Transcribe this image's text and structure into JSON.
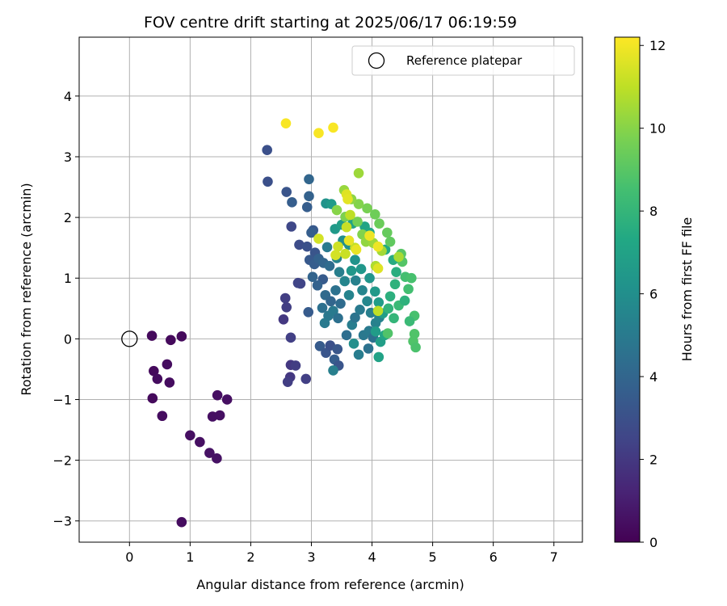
{
  "chart_data": {
    "type": "scatter",
    "title": "FOV centre drift starting at 2025/06/17 06:19:59",
    "xlabel": "Angular distance from reference (arcmin)",
    "ylabel": "Rotation from reference (arcmin)",
    "xlim": [
      -0.83,
      7.47
    ],
    "ylim": [
      -3.35,
      4.97
    ],
    "xticks": [
      0,
      1,
      2,
      3,
      4,
      5,
      6,
      7
    ],
    "yticks": [
      -3,
      -2,
      -1,
      0,
      1,
      2,
      3,
      4
    ],
    "grid": true,
    "legend": {
      "position": "top-right",
      "entries": [
        "Reference platepar"
      ]
    },
    "colorbar": {
      "label": "Hours from first FF file",
      "range": [
        0,
        12.2
      ],
      "ticks": [
        0,
        2,
        4,
        6,
        8,
        10,
        12
      ],
      "colormap": "viridis"
    },
    "reference_point": {
      "name": "Reference platepar",
      "x": 0,
      "y": 0
    },
    "points": [
      [
        0.37,
        0.05,
        0.3
      ],
      [
        0.68,
        -0.02,
        0.3
      ],
      [
        0.86,
        0.04,
        0.3
      ],
      [
        0.62,
        -0.42,
        0.4
      ],
      [
        0.4,
        -0.53,
        0.3
      ],
      [
        0.46,
        -0.66,
        0.4
      ],
      [
        0.66,
        -0.72,
        0.4
      ],
      [
        0.38,
        -0.98,
        0.3
      ],
      [
        0.54,
        -1.27,
        0.4
      ],
      [
        1.45,
        -0.93,
        0.5
      ],
      [
        1.61,
        -1.0,
        0.5
      ],
      [
        1.37,
        -1.28,
        0.5
      ],
      [
        1.49,
        -1.26,
        0.5
      ],
      [
        1.0,
        -1.59,
        0.5
      ],
      [
        1.16,
        -1.7,
        0.5
      ],
      [
        1.32,
        -1.88,
        0.6
      ],
      [
        1.44,
        -1.97,
        0.6
      ],
      [
        0.86,
        -3.02,
        0.4
      ],
      [
        2.27,
        3.11,
        3.0
      ],
      [
        2.28,
        2.59,
        3.0
      ],
      [
        2.59,
        2.42,
        3.2
      ],
      [
        2.68,
        2.25,
        3.6
      ],
      [
        2.96,
        2.63,
        4.0
      ],
      [
        2.96,
        2.35,
        3.8
      ],
      [
        2.93,
        2.17,
        3.6
      ],
      [
        2.67,
        1.85,
        2.6
      ],
      [
        2.8,
        1.55,
        2.8
      ],
      [
        2.93,
        1.52,
        3.0
      ],
      [
        3.03,
        1.79,
        3.4
      ],
      [
        3.0,
        1.75,
        3.6
      ],
      [
        2.82,
        0.91,
        2.5
      ],
      [
        2.78,
        0.92,
        2.5
      ],
      [
        2.57,
        0.67,
        2.2
      ],
      [
        2.59,
        0.52,
        2.2
      ],
      [
        2.54,
        0.32,
        2.0
      ],
      [
        2.95,
        0.44,
        3.5
      ],
      [
        2.66,
        0.02,
        2.3
      ],
      [
        2.66,
        -0.43,
        2.0
      ],
      [
        2.74,
        -0.44,
        2.2
      ],
      [
        2.65,
        -0.63,
        2.0
      ],
      [
        2.61,
        -0.71,
        2.2
      ],
      [
        2.91,
        -0.66,
        2.3
      ],
      [
        3.06,
        1.42,
        3.2
      ],
      [
        2.97,
        1.3,
        3.4
      ],
      [
        3.05,
        1.23,
        3.6
      ],
      [
        3.12,
        1.32,
        3.8
      ],
      [
        3.2,
        1.25,
        4.0
      ],
      [
        3.3,
        1.2,
        4.3
      ],
      [
        3.02,
        1.02,
        3.9
      ],
      [
        3.19,
        0.98,
        3.5
      ],
      [
        3.1,
        0.88,
        3.8
      ],
      [
        3.23,
        0.72,
        4.2
      ],
      [
        3.18,
        0.51,
        4.5
      ],
      [
        3.32,
        0.62,
        4.0
      ],
      [
        3.4,
        0.8,
        4.6
      ],
      [
        3.48,
        0.58,
        4.3
      ],
      [
        3.28,
        0.38,
        4.9
      ],
      [
        3.36,
        0.46,
        5.0
      ],
      [
        3.44,
        0.34,
        4.5
      ],
      [
        3.22,
        0.26,
        5.0
      ],
      [
        3.14,
        -0.12,
        3.5
      ],
      [
        3.24,
        -0.23,
        3.2
      ],
      [
        3.31,
        -0.11,
        3.0
      ],
      [
        3.43,
        -0.17,
        3.3
      ],
      [
        3.38,
        -0.34,
        3.6
      ],
      [
        3.45,
        -0.44,
        3.2
      ],
      [
        3.36,
        -0.52,
        5.2
      ],
      [
        3.78,
        -0.26,
        5.1
      ],
      [
        3.94,
        -0.16,
        4.6
      ],
      [
        3.58,
        0.06,
        4.4
      ],
      [
        3.67,
        0.23,
        5.1
      ],
      [
        3.72,
        0.35,
        4.7
      ],
      [
        3.8,
        0.48,
        5.0
      ],
      [
        3.86,
        0.06,
        4.9
      ],
      [
        3.95,
        0.13,
        5.0
      ],
      [
        4.02,
        0.02,
        4.5
      ],
      [
        4.06,
        0.26,
        5.3
      ],
      [
        4.12,
        0.35,
        5.4
      ],
      [
        3.98,
        0.43,
        5.2
      ],
      [
        3.92,
        0.62,
        5.6
      ],
      [
        3.84,
        0.8,
        5.5
      ],
      [
        3.73,
        0.96,
        5.3
      ],
      [
        3.62,
        0.72,
        5.4
      ],
      [
        3.55,
        0.95,
        5.5
      ],
      [
        3.46,
        1.1,
        5.2
      ],
      [
        3.42,
        1.33,
        5.4
      ],
      [
        3.26,
        1.51,
        5.0
      ],
      [
        3.52,
        1.62,
        6.0
      ],
      [
        3.62,
        1.55,
        6.1
      ],
      [
        3.72,
        1.3,
        6.2
      ],
      [
        3.66,
        1.12,
        6.4
      ],
      [
        3.82,
        1.15,
        6.4
      ],
      [
        3.96,
        1.0,
        6.3
      ],
      [
        4.05,
        0.78,
        6.5
      ],
      [
        4.11,
        0.6,
        6.7
      ],
      [
        4.18,
        0.42,
        6.8
      ],
      [
        4.06,
        0.12,
        6.7
      ],
      [
        4.14,
        -0.05,
        6.8
      ],
      [
        4.11,
        -0.3,
        7.0
      ],
      [
        4.21,
        0.06,
        7.2
      ],
      [
        3.7,
        -0.08,
        6.0
      ],
      [
        3.24,
        2.23,
        6.2
      ],
      [
        3.33,
        2.22,
        6.6
      ],
      [
        3.39,
        1.81,
        6.5
      ],
      [
        3.5,
        1.88,
        6.8
      ],
      [
        3.68,
        1.9,
        7.0
      ],
      [
        3.88,
        1.85,
        7.1
      ],
      [
        3.96,
        1.75,
        7.3
      ],
      [
        4.22,
        1.47,
        7.4
      ],
      [
        4.35,
        1.3,
        7.5
      ],
      [
        4.4,
        1.1,
        7.6
      ],
      [
        4.38,
        0.9,
        7.8
      ],
      [
        4.3,
        0.7,
        7.7
      ],
      [
        4.27,
        0.5,
        7.9
      ],
      [
        4.36,
        0.34,
        8.0
      ],
      [
        4.44,
        0.55,
        8.2
      ],
      [
        4.54,
        0.63,
        7.8
      ],
      [
        4.6,
        0.82,
        8.5
      ],
      [
        4.55,
        1.02,
        8.5
      ],
      [
        4.65,
        1.0,
        8.6
      ],
      [
        4.7,
        0.38,
        8.6
      ],
      [
        4.62,
        0.29,
        8.2
      ],
      [
        4.7,
        0.08,
        8.8
      ],
      [
        4.68,
        -0.04,
        8.8
      ],
      [
        4.72,
        -0.14,
        8.7
      ],
      [
        4.26,
        0.09,
        8.8
      ],
      [
        4.5,
        1.27,
        8.9
      ],
      [
        4.48,
        1.4,
        9.0
      ],
      [
        4.3,
        1.6,
        9.2
      ],
      [
        4.25,
        1.75,
        9.3
      ],
      [
        4.12,
        1.9,
        9.4
      ],
      [
        4.05,
        2.05,
        9.5
      ],
      [
        3.92,
        2.15,
        9.7
      ],
      [
        3.78,
        2.22,
        9.9
      ],
      [
        3.66,
        2.3,
        10.1
      ],
      [
        3.54,
        2.45,
        10.3
      ],
      [
        3.42,
        2.12,
        10.0
      ],
      [
        3.56,
        2.01,
        9.8
      ],
      [
        3.76,
        1.93,
        9.6
      ],
      [
        3.84,
        1.72,
        9.9
      ],
      [
        3.9,
        1.6,
        10.2
      ],
      [
        4.02,
        1.58,
        10.4
      ],
      [
        4.16,
        1.45,
        10.5
      ],
      [
        4.44,
        1.35,
        10.6
      ],
      [
        4.06,
        1.2,
        10.7
      ],
      [
        3.78,
        2.73,
        10.4
      ],
      [
        3.64,
        2.04,
        11.0
      ],
      [
        3.58,
        1.84,
        11.2
      ],
      [
        3.72,
        1.5,
        11.1
      ],
      [
        3.56,
        1.4,
        11.2
      ],
      [
        3.44,
        1.52,
        11.3
      ],
      [
        3.4,
        1.38,
        11.4
      ],
      [
        3.12,
        1.65,
        11.4
      ],
      [
        3.58,
        2.38,
        11.6
      ],
      [
        3.6,
        2.3,
        11.7
      ],
      [
        3.62,
        1.62,
        11.8
      ],
      [
        3.74,
        1.47,
        11.8
      ],
      [
        3.96,
        1.7,
        11.9
      ],
      [
        4.1,
        1.52,
        11.9
      ],
      [
        4.1,
        1.16,
        11.6
      ],
      [
        4.1,
        0.46,
        11.0
      ],
      [
        2.58,
        3.55,
        12.1
      ],
      [
        3.12,
        3.39,
        12.1
      ],
      [
        3.36,
        3.48,
        12.1
      ]
    ]
  }
}
